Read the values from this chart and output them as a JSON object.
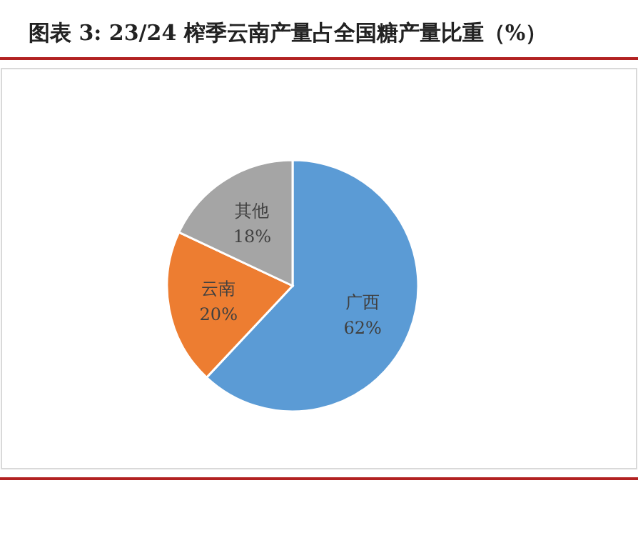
{
  "chart_data": {
    "type": "pie",
    "title": "图表 3: 23/24 榨季云南产量占全国糖产量比重（%）",
    "categories": [
      "广西",
      "云南",
      "其他"
    ],
    "values": [
      62,
      20,
      18
    ],
    "colors": [
      "#5b9bd5",
      "#ed7d31",
      "#a5a5a5"
    ],
    "value_labels": [
      "62%",
      "20%",
      "18%"
    ]
  }
}
